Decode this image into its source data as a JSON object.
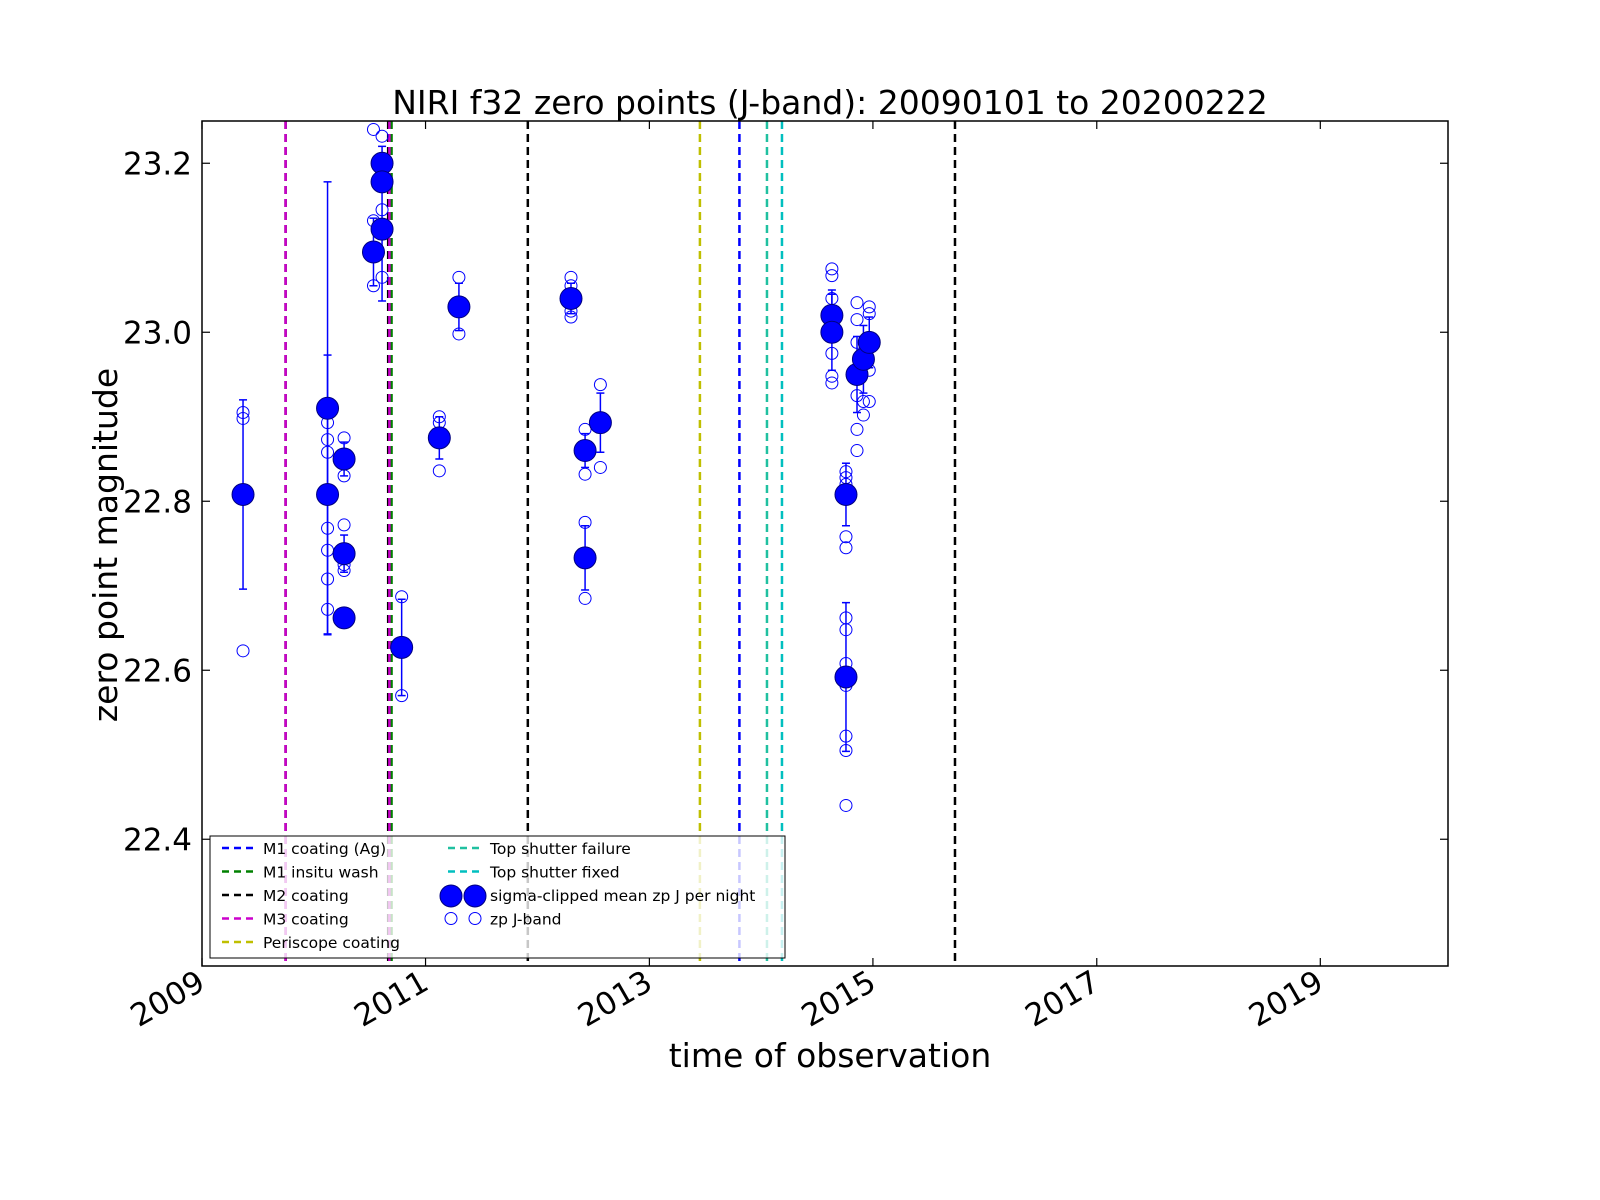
{
  "chart_data": {
    "type": "scatter",
    "title": "NIRI f32 zero points (J-band): 20090101 to 20200222",
    "xlabel": "time of observation",
    "ylabel": "zero point magnitude",
    "x_range": [
      "2009-01-01",
      "2020-02-22"
    ],
    "ylim": [
      22.25,
      23.25
    ],
    "x_ticks": [
      "2009",
      "2011",
      "2013",
      "2015",
      "2017",
      "2019"
    ],
    "y_ticks": [
      "22.4",
      "22.6",
      "22.8",
      "23.0",
      "23.2"
    ],
    "grid": false,
    "legend_position": "lower-left",
    "event_lines": [
      {
        "name": "M1 coating (Ag)",
        "color": "#0000ff",
        "dates": [
          "2013-10-22"
        ]
      },
      {
        "name": "M1 insitu wash",
        "color": "#008000",
        "dates": [
          "2010-09-12"
        ]
      },
      {
        "name": "M2 coating",
        "color": "#000000",
        "dates": [
          "2009-10-01",
          "2010-09-01",
          "2011-12-01",
          "2015-09-26"
        ]
      },
      {
        "name": "M3 coating",
        "color": "#cc00cc",
        "dates": [
          "2009-10-01",
          "2010-09-05"
        ]
      },
      {
        "name": "Periscope coating",
        "color": "#bfbf00",
        "dates": [
          "2013-06-15"
        ]
      },
      {
        "name": "Top shutter failure",
        "color": "#20c0a0",
        "dates": [
          "2014-01-20"
        ]
      },
      {
        "name": "Top shutter fixed",
        "color": "#00bfbf",
        "dates": [
          "2014-03-10"
        ]
      }
    ],
    "series": [
      {
        "name": "sigma-clipped mean zp J per night",
        "color": "#0000ff",
        "points": [
          {
            "x": "2009-05-15",
            "y": 22.808,
            "err": 0.112
          },
          {
            "x": "2010-02-15",
            "y": 22.91,
            "err": 0.268
          },
          {
            "x": "2010-02-15",
            "y": 22.808,
            "err": 0.165
          },
          {
            "x": "2010-04-10",
            "y": 22.85,
            "err": 0.02
          },
          {
            "x": "2010-04-10",
            "y": 22.738,
            "err": 0.022
          },
          {
            "x": "2010-04-10",
            "y": 22.662,
            "err": 0.005
          },
          {
            "x": "2010-07-15",
            "y": 23.095,
            "err": 0.04
          },
          {
            "x": "2010-08-12",
            "y": 23.2,
            "err": 0.02
          },
          {
            "x": "2010-08-12",
            "y": 23.178,
            "err": 0.01
          },
          {
            "x": "2010-08-12",
            "y": 23.122,
            "err": 0.085
          },
          {
            "x": "2010-10-15",
            "y": 22.627,
            "err": 0.057
          },
          {
            "x": "2011-02-15",
            "y": 22.875,
            "err": 0.025
          },
          {
            "x": "2011-04-20",
            "y": 23.03,
            "err": 0.028
          },
          {
            "x": "2012-04-20",
            "y": 23.04,
            "err": 0.018
          },
          {
            "x": "2012-06-05",
            "y": 22.86,
            "err": 0.02
          },
          {
            "x": "2012-06-05",
            "y": 22.733,
            "err": 0.038
          },
          {
            "x": "2012-07-25",
            "y": 22.893,
            "err": 0.035
          },
          {
            "x": "2014-08-20",
            "y": 23.02,
            "err": 0.03
          },
          {
            "x": "2014-08-20",
            "y": 23.0,
            "err": 0.045
          },
          {
            "x": "2014-10-05",
            "y": 22.808,
            "err": 0.037
          },
          {
            "x": "2014-10-05",
            "y": 22.592,
            "err": 0.088
          },
          {
            "x": "2014-11-10",
            "y": 22.95,
            "err": 0.045
          },
          {
            "x": "2014-12-01",
            "y": 22.968,
            "err": 0.04
          },
          {
            "x": "2014-12-20",
            "y": 22.988,
            "err": 0.03
          }
        ]
      },
      {
        "name": "zp J-band",
        "color": "#0000ff",
        "points": [
          {
            "x": "2009-05-15",
            "y": 22.905
          },
          {
            "x": "2009-05-15",
            "y": 22.898
          },
          {
            "x": "2009-05-15",
            "y": 22.623
          },
          {
            "x": "2010-02-15",
            "y": 22.893
          },
          {
            "x": "2010-02-15",
            "y": 22.873
          },
          {
            "x": "2010-02-15",
            "y": 22.858
          },
          {
            "x": "2010-02-15",
            "y": 22.768
          },
          {
            "x": "2010-02-15",
            "y": 22.742
          },
          {
            "x": "2010-02-15",
            "y": 22.708
          },
          {
            "x": "2010-02-15",
            "y": 22.672
          },
          {
            "x": "2010-04-10",
            "y": 22.875
          },
          {
            "x": "2010-04-10",
            "y": 22.83
          },
          {
            "x": "2010-04-10",
            "y": 22.772
          },
          {
            "x": "2010-04-10",
            "y": 22.725
          },
          {
            "x": "2010-04-10",
            "y": 22.718
          },
          {
            "x": "2010-07-15",
            "y": 23.24
          },
          {
            "x": "2010-07-15",
            "y": 23.132
          },
          {
            "x": "2010-07-15",
            "y": 23.055
          },
          {
            "x": "2010-08-12",
            "y": 23.232
          },
          {
            "x": "2010-08-12",
            "y": 23.145
          },
          {
            "x": "2010-08-12",
            "y": 23.065
          },
          {
            "x": "2010-10-15",
            "y": 22.687
          },
          {
            "x": "2010-10-15",
            "y": 22.57
          },
          {
            "x": "2011-02-15",
            "y": 22.9
          },
          {
            "x": "2011-02-15",
            "y": 22.893
          },
          {
            "x": "2011-02-15",
            "y": 22.836
          },
          {
            "x": "2011-04-20",
            "y": 23.065
          },
          {
            "x": "2011-04-20",
            "y": 22.998
          },
          {
            "x": "2012-04-20",
            "y": 23.065
          },
          {
            "x": "2012-04-20",
            "y": 23.055
          },
          {
            "x": "2012-04-20",
            "y": 23.025
          },
          {
            "x": "2012-04-20",
            "y": 23.018
          },
          {
            "x": "2012-06-05",
            "y": 22.885
          },
          {
            "x": "2012-06-05",
            "y": 22.832
          },
          {
            "x": "2012-06-05",
            "y": 22.775
          },
          {
            "x": "2012-06-05",
            "y": 22.685
          },
          {
            "x": "2012-07-25",
            "y": 22.938
          },
          {
            "x": "2012-07-25",
            "y": 22.84
          },
          {
            "x": "2014-08-20",
            "y": 23.075
          },
          {
            "x": "2014-08-20",
            "y": 23.067
          },
          {
            "x": "2014-08-20",
            "y": 23.04
          },
          {
            "x": "2014-08-20",
            "y": 22.975
          },
          {
            "x": "2014-08-20",
            "y": 22.948
          },
          {
            "x": "2014-08-20",
            "y": 22.94
          },
          {
            "x": "2014-10-05",
            "y": 22.835
          },
          {
            "x": "2014-10-05",
            "y": 22.828
          },
          {
            "x": "2014-10-05",
            "y": 22.82
          },
          {
            "x": "2014-10-05",
            "y": 22.758
          },
          {
            "x": "2014-10-05",
            "y": 22.745
          },
          {
            "x": "2014-10-05",
            "y": 22.662
          },
          {
            "x": "2014-10-05",
            "y": 22.648
          },
          {
            "x": "2014-10-05",
            "y": 22.608
          },
          {
            "x": "2014-10-05",
            "y": 22.582
          },
          {
            "x": "2014-10-05",
            "y": 22.522
          },
          {
            "x": "2014-10-05",
            "y": 22.505
          },
          {
            "x": "2014-10-05",
            "y": 22.44
          },
          {
            "x": "2014-11-10",
            "y": 23.035
          },
          {
            "x": "2014-11-10",
            "y": 23.015
          },
          {
            "x": "2014-11-10",
            "y": 22.988
          },
          {
            "x": "2014-11-10",
            "y": 22.925
          },
          {
            "x": "2014-11-10",
            "y": 22.885
          },
          {
            "x": "2014-11-10",
            "y": 22.86
          },
          {
            "x": "2014-12-01",
            "y": 22.918
          },
          {
            "x": "2014-12-01",
            "y": 22.902
          },
          {
            "x": "2014-12-20",
            "y": 23.03
          },
          {
            "x": "2014-12-20",
            "y": 23.022
          },
          {
            "x": "2014-12-20",
            "y": 22.918
          },
          {
            "x": "2014-12-20",
            "y": 22.955
          }
        ]
      }
    ],
    "legend": {
      "entries": [
        {
          "label": "M1 coating (Ag)",
          "color": "#0000ff",
          "kind": "dashed"
        },
        {
          "label": "M1 insitu wash",
          "color": "#008000",
          "kind": "dashed"
        },
        {
          "label": "M2 coating",
          "color": "#000000",
          "kind": "dashed"
        },
        {
          "label": "M3 coating",
          "color": "#cc00cc",
          "kind": "dashed"
        },
        {
          "label": "Periscope coating",
          "color": "#bfbf00",
          "kind": "dashed"
        },
        {
          "label": "Top shutter failure",
          "color": "#20c0a0",
          "kind": "dashed"
        },
        {
          "label": "Top shutter fixed",
          "color": "#00bfbf",
          "kind": "dashed"
        },
        {
          "label": "sigma-clipped mean zp J per night",
          "color": "#0000ff",
          "kind": "filled-marker"
        },
        {
          "label": "zp J-band",
          "color": "#0000ff",
          "kind": "open-marker"
        }
      ]
    }
  }
}
